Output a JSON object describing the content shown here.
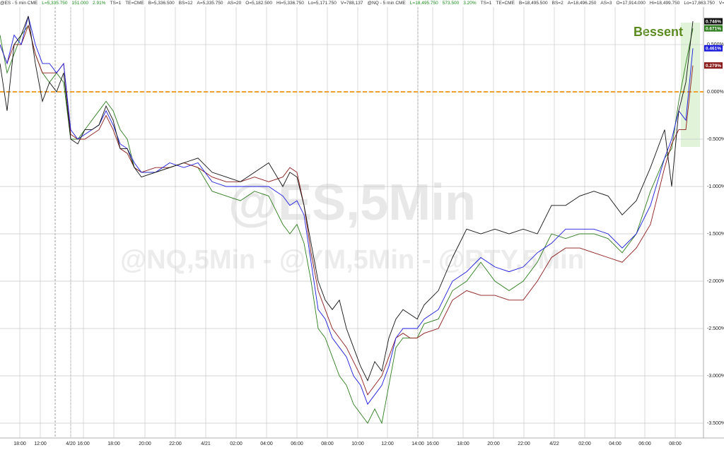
{
  "header": {
    "items": [
      "@ES - 5 min  CME",
      "L=5,335.750",
      "151.000",
      "2.91%",
      "TS=1",
      "TE=CME",
      "B=5,336.500",
      "BS=12",
      "A=5,335.750",
      "AS=20",
      "O=5,182.500",
      "Hi=5,336.750",
      "Lo=5,171.750",
      "V=788,137",
      "@NQ - 5 min  CME",
      "L=18,495.750",
      "573.500",
      "3.20%",
      "TS=1",
      "TE=CME",
      "B=18,495.500",
      "BS=2",
      "A=18,496.250",
      "AS=3",
      "O=17,914.000",
      "Hi=18,499.750",
      "Lo=17,863.750",
      "V=346..."
    ]
  },
  "chart_data": {
    "type": "line",
    "watermark": "@ES,5Min",
    "watermark_sub": "@NQ,5Min - @YM,5Min - @RTY,5Min",
    "annotation": "Bessent",
    "reference_line": {
      "value": 0,
      "color": "#f0a030"
    },
    "grid": true,
    "xlim": [
      0,
      995
    ],
    "ylim": [
      -3.657,
      0.896
    ],
    "xticks": [
      {
        "value": 28,
        "label": "18:00"
      },
      {
        "value": 57,
        "label": "12:00"
      },
      {
        "value": 100,
        "label": "4/20"
      },
      {
        "value": 118,
        "label": "16:00"
      },
      {
        "value": 161,
        "label": "18:00"
      },
      {
        "value": 205,
        "label": "20:00"
      },
      {
        "value": 248,
        "label": "22:00"
      },
      {
        "value": 291,
        "label": "4/21"
      },
      {
        "value": 334,
        "label": "02:00"
      },
      {
        "value": 377,
        "label": "04:00"
      },
      {
        "value": 420,
        "label": "06:00"
      },
      {
        "value": 463,
        "label": "08:00"
      },
      {
        "value": 506,
        "label": "10:00"
      },
      {
        "value": 548,
        "label": "12:00"
      },
      {
        "value": 591,
        "label": "14:00"
      },
      {
        "value": 612,
        "label": "16:00"
      },
      {
        "value": 655,
        "label": "18:00"
      },
      {
        "value": 698,
        "label": "20:00"
      },
      {
        "value": 741,
        "label": "22:00"
      },
      {
        "value": 784,
        "label": "4/22"
      },
      {
        "value": 827,
        "label": "02:00"
      },
      {
        "value": 870,
        "label": "04:00"
      },
      {
        "value": 912,
        "label": "06:00"
      },
      {
        "value": 955,
        "label": "08:00"
      }
    ],
    "yticks": [
      {
        "value": 0.5,
        "label": "0.500%"
      },
      {
        "value": 0,
        "label": "0.000%"
      },
      {
        "value": -0.5,
        "label": "-0.500%"
      },
      {
        "value": -1,
        "label": "-1.000%"
      },
      {
        "value": -1.5,
        "label": "-1.500%"
      },
      {
        "value": -2,
        "label": "-2.000%"
      },
      {
        "value": -2.5,
        "label": "-2.500%"
      },
      {
        "value": -3,
        "label": "-3.000%"
      },
      {
        "value": -3.5,
        "label": "-3.500%"
      }
    ],
    "x": [
      0,
      10,
      20,
      30,
      40,
      50,
      60,
      70,
      80,
      90,
      100,
      110,
      120,
      130,
      140,
      150,
      160,
      170,
      180,
      190,
      200,
      220,
      240,
      260,
      280,
      300,
      320,
      340,
      360,
      380,
      400,
      410,
      420,
      430,
      440,
      450,
      460,
      470,
      480,
      490,
      500,
      510,
      520,
      530,
      540,
      550,
      560,
      570,
      580,
      590,
      600,
      620,
      640,
      660,
      680,
      700,
      720,
      740,
      760,
      780,
      800,
      820,
      840,
      860,
      880,
      900,
      920,
      940,
      950,
      960,
      970,
      980
    ],
    "series": [
      {
        "color": "#2e7d1e",
        "end_label": "0.671%",
        "values": [
          0.6,
          0.2,
          0.4,
          0.6,
          0.7,
          0.4,
          0.2,
          0.1,
          0.2,
          0.1,
          -0.5,
          -0.5,
          -0.4,
          -0.3,
          -0.2,
          -0.1,
          -0.2,
          -0.4,
          -0.5,
          -0.8,
          -0.85,
          -0.85,
          -0.8,
          -0.75,
          -0.8,
          -1.05,
          -1.1,
          -1.15,
          -1.05,
          -1.1,
          -1.4,
          -1.5,
          -1.4,
          -1.6,
          -2.0,
          -2.5,
          -2.6,
          -2.8,
          -3.0,
          -3.1,
          -3.3,
          -3.4,
          -3.5,
          -3.35,
          -3.5,
          -3.1,
          -2.7,
          -2.6,
          -2.6,
          -2.6,
          -2.45,
          -2.4,
          -2.1,
          -2.0,
          -1.8,
          -2.0,
          -2.1,
          -2.0,
          -1.8,
          -1.5,
          -1.55,
          -1.5,
          -1.5,
          -1.55,
          -1.7,
          -1.5,
          -1.05,
          -0.7,
          -0.6,
          -0.1,
          0.3,
          0.671
        ]
      },
      {
        "color": "#8b1a1a",
        "end_label": "0.279%",
        "values": [
          0.5,
          0.3,
          0.5,
          0.5,
          0.7,
          0.4,
          0.2,
          0.2,
          0.2,
          0.3,
          -0.45,
          -0.5,
          -0.5,
          -0.45,
          -0.4,
          -0.25,
          -0.4,
          -0.6,
          -0.65,
          -0.8,
          -0.85,
          -0.8,
          -0.8,
          -0.75,
          -0.8,
          -0.9,
          -0.95,
          -0.95,
          -0.9,
          -0.95,
          -0.9,
          -0.8,
          -0.85,
          -1.2,
          -1.7,
          -2.1,
          -2.3,
          -2.5,
          -2.6,
          -2.7,
          -2.85,
          -3.0,
          -3.2,
          -3.1,
          -3.0,
          -2.8,
          -2.6,
          -2.55,
          -2.6,
          -2.6,
          -2.55,
          -2.5,
          -2.2,
          -2.1,
          -2.15,
          -2.15,
          -2.2,
          -2.2,
          -2.0,
          -1.75,
          -1.65,
          -1.65,
          -1.7,
          -1.75,
          -1.8,
          -1.65,
          -1.4,
          -0.8,
          -0.55,
          -0.4,
          -0.4,
          0.279
        ]
      },
      {
        "color": "#1a1adc",
        "end_label": "0.461%",
        "values": [
          0.5,
          0.3,
          0.6,
          0.5,
          0.8,
          0.5,
          0.3,
          0.3,
          0.2,
          0.3,
          -0.4,
          -0.5,
          -0.45,
          -0.4,
          -0.35,
          -0.2,
          -0.35,
          -0.55,
          -0.6,
          -0.75,
          -0.85,
          -0.85,
          -0.75,
          -0.8,
          -0.75,
          -0.95,
          -1.0,
          -1.0,
          -1.0,
          -1.0,
          -1.1,
          -1.2,
          -1.15,
          -1.3,
          -1.8,
          -2.3,
          -2.4,
          -2.6,
          -2.7,
          -2.8,
          -3.0,
          -3.1,
          -3.3,
          -3.2,
          -3.1,
          -2.9,
          -2.6,
          -2.5,
          -2.5,
          -2.5,
          -2.4,
          -2.3,
          -2.0,
          -1.9,
          -1.75,
          -1.85,
          -1.9,
          -1.85,
          -1.7,
          -1.6,
          -1.45,
          -1.45,
          -1.45,
          -1.5,
          -1.65,
          -1.5,
          -1.2,
          -0.7,
          -0.5,
          -0.2,
          -0.3,
          0.461
        ]
      },
      {
        "color": "#111111",
        "end_label": "0.746%",
        "values": [
          0.3,
          -0.2,
          0.5,
          0.6,
          0.8,
          0.3,
          -0.1,
          0.1,
          0.0,
          0.2,
          -0.5,
          -0.55,
          -0.4,
          -0.4,
          -0.35,
          -0.15,
          -0.3,
          -0.6,
          -0.6,
          -0.8,
          -0.9,
          -0.85,
          -0.8,
          -0.75,
          -0.7,
          -0.85,
          -0.9,
          -0.95,
          -0.85,
          -0.75,
          -1.0,
          -0.85,
          -0.9,
          -1.2,
          -1.6,
          -2.0,
          -2.2,
          -2.3,
          -2.2,
          -2.5,
          -2.7,
          -2.9,
          -3.05,
          -2.85,
          -2.95,
          -2.6,
          -2.4,
          -2.3,
          -2.35,
          -2.4,
          -2.25,
          -2.1,
          -1.75,
          -1.45,
          -1.5,
          -1.45,
          -1.5,
          -1.45,
          -1.5,
          -1.2,
          -1.2,
          -1.1,
          -1.05,
          -1.1,
          -1.3,
          -1.15,
          -0.8,
          -0.4,
          -1.0,
          -0.2,
          0.1,
          0.746
        ]
      }
    ]
  }
}
